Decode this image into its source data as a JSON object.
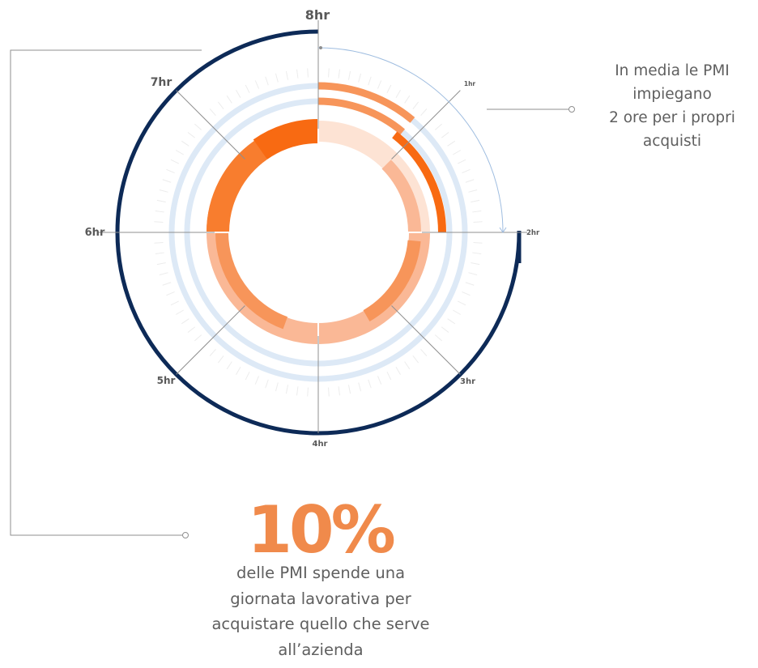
{
  "clock": {
    "hour_labels": [
      "1hr",
      "2hr",
      "3hr",
      "4hr",
      "5hr",
      "6hr",
      "7hr",
      "8hr"
    ]
  },
  "callout_right": {
    "lines": [
      "In media le PMI",
      "impiegano",
      "2 ore per i propri",
      "acquisti"
    ]
  },
  "stat": {
    "value": "10%",
    "lines": [
      "delle PMI spende una",
      "giornata lavorativa per",
      "acquistare quello che serve",
      "all’azienda"
    ]
  },
  "colors": {
    "navy": "#0d2a57",
    "orange_dark": "#f86a12",
    "orange_mid": "#f7955a",
    "orange_light": "#fab896",
    "orange_pale": "#fde3d4",
    "blue_light": "#dde9f6",
    "gray_line": "#8f8f8f",
    "arrow_blue": "#9fbde0"
  }
}
